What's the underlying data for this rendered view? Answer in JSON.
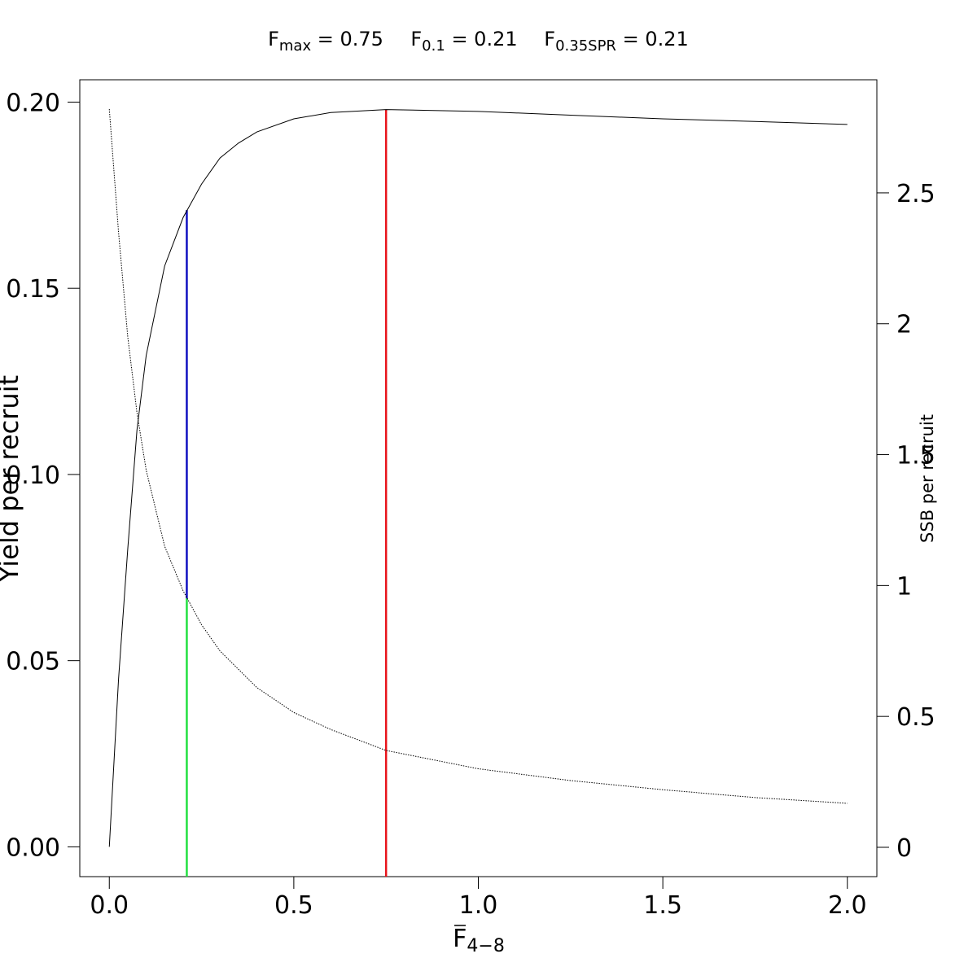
{
  "chart_data": {
    "type": "line",
    "annotations": [
      {
        "text": "F",
        "sub": "max",
        "rest": " = 0.75"
      },
      {
        "text": "F",
        "sub": "0.1",
        "rest": " = 0.21"
      },
      {
        "text": "F",
        "sub": "0.35SPR",
        "rest": " = 0.21"
      }
    ],
    "x_label": {
      "text": "F",
      "sub": "4−8"
    },
    "y_label": "Yield per recruit",
    "y2_label": "SSB per recruit",
    "x": [
      0,
      0.025,
      0.05,
      0.075,
      0.1,
      0.15,
      0.2,
      0.25,
      0.3,
      0.35,
      0.4,
      0.5,
      0.6,
      0.75,
      1.0,
      1.25,
      1.5,
      1.75,
      2.0
    ],
    "series": [
      {
        "color": "#000000",
        "style": "solid",
        "values": [
          0,
          0.045,
          0.08,
          0.112,
          0.132,
          0.156,
          0.169,
          0.178,
          0.185,
          0.189,
          0.192,
          0.1955,
          0.1972,
          0.198,
          0.1975,
          0.1965,
          0.1955,
          0.1948,
          0.194
        ]
      },
      {
        "color": "#000000",
        "style": "dotted",
        "axis": "y2",
        "values": [
          2.82,
          2.35,
          1.95,
          1.66,
          1.44,
          1.15,
          0.98,
          0.85,
          0.75,
          0.68,
          0.61,
          0.515,
          0.45,
          0.37,
          0.3,
          0.255,
          0.22,
          0.19,
          0.168
        ]
      }
    ],
    "reference_lines": [
      {
        "x": 0.75,
        "y": 0.198,
        "color": "#e8141c"
      },
      {
        "x": 0.21,
        "y": 0.171,
        "y2": 0.951,
        "color": "#1010c0"
      },
      {
        "x": 0.21,
        "y2": 0.951,
        "color": "#22e040"
      }
    ],
    "xlim": [
      -0.08,
      2.08
    ],
    "ylim": [
      -0.008,
      0.206
    ],
    "y2lim": [
      -0.112,
      2.932
    ],
    "xticks": [
      {
        "value": 0,
        "label": "0.0"
      },
      0.5,
      {
        "value": 1,
        "label": "1.0"
      },
      1.5,
      {
        "value": 2,
        "label": "2.0"
      }
    ],
    "yticks": [
      {
        "value": 0,
        "label": "0.00"
      },
      {
        "value": 0.05,
        "label": "0.05"
      },
      {
        "value": 0.1,
        "label": "0.10"
      },
      0.15,
      {
        "value": 0.2,
        "label": "0.20"
      }
    ],
    "y2ticks": [
      0,
      0.5,
      1,
      1.5,
      2,
      2.5
    ]
  }
}
